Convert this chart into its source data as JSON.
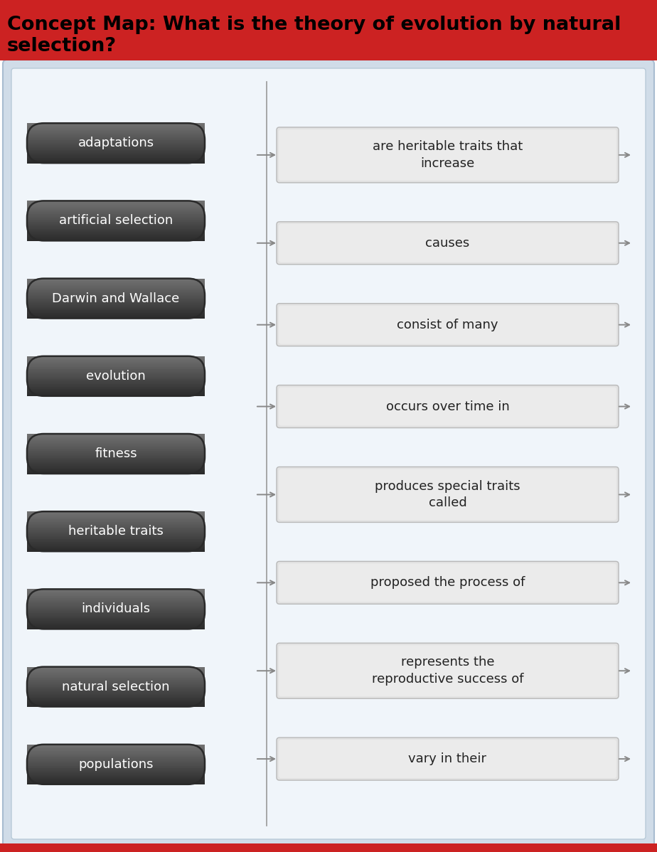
{
  "title_line1": "Concept Map: What is the theory of evolution by natural",
  "title_line2": "selection?",
  "title_bg": "#cc2222",
  "title_color": "#000000",
  "outer_bg": "#d0dce8",
  "inner_bg": "#f0f5fa",
  "left_items": [
    "adaptations",
    "artificial selection",
    "Darwin and Wallace",
    "evolution",
    "fitness",
    "heritable traits",
    "individuals",
    "natural selection",
    "populations"
  ],
  "right_items": [
    "are heritable traits that\nincrease",
    "causes",
    "consist of many",
    "occurs over time in",
    "produces special traits\ncalled",
    "proposed the process of",
    "represents the\nreproductive success of",
    "vary in their"
  ],
  "left_text_color": "#ffffff",
  "right_text_color": "#222222",
  "divider_color": "#999999",
  "arrow_color": "#888888",
  "bottom_bar_color": "#cc2222"
}
